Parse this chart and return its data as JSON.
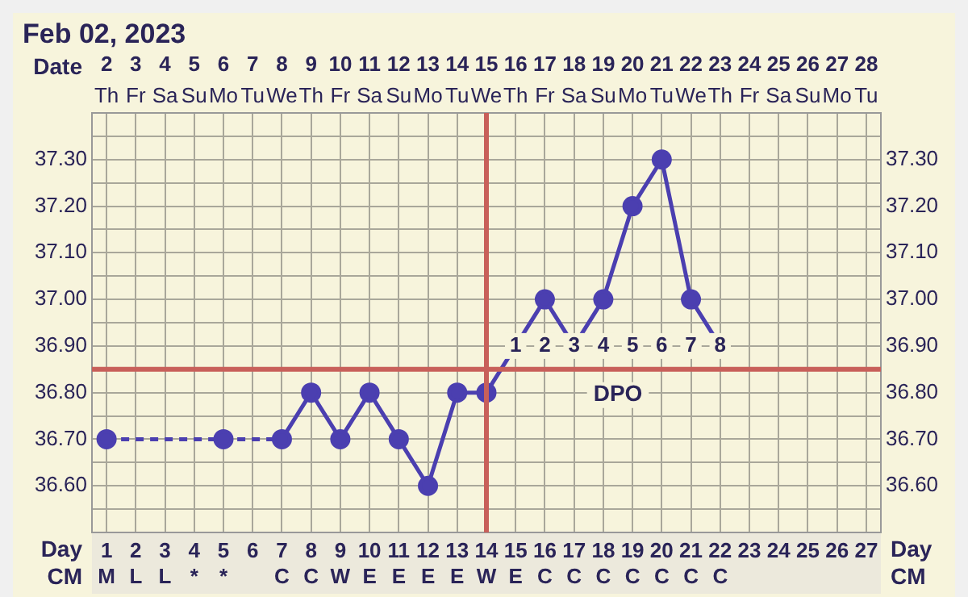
{
  "chart_data": {
    "type": "line",
    "title": "Feb 02, 2023",
    "x": [
      1,
      2,
      3,
      4,
      5,
      6,
      7,
      8,
      9,
      10,
      11,
      12,
      13,
      14,
      15,
      16,
      17,
      18,
      19,
      20,
      21,
      22
    ],
    "series": [
      {
        "color": "#4b3fb0",
        "values": [
          36.7,
          null,
          null,
          null,
          36.7,
          null,
          36.7,
          36.8,
          36.7,
          36.8,
          36.7,
          36.6,
          36.8,
          36.8,
          36.9,
          37.0,
          36.9,
          37.0,
          37.2,
          37.3,
          37.0,
          36.9
        ]
      }
    ],
    "xlim": [
      0.5,
      27.5
    ],
    "xticks": [
      1,
      2,
      3,
      4,
      5,
      6,
      7,
      8,
      9,
      10,
      11,
      12,
      13,
      14,
      15,
      16,
      17,
      18,
      19,
      20,
      21,
      22,
      23,
      24,
      25,
      26,
      27
    ],
    "xlabel": "Day",
    "x2lim": [
      1.5,
      28.5
    ],
    "x2ticks": [
      2,
      3,
      4,
      5,
      6,
      7,
      8,
      9,
      10,
      11,
      12,
      13,
      14,
      15,
      16,
      17,
      18,
      19,
      20,
      21,
      22,
      23,
      24,
      25,
      26,
      27,
      28
    ],
    "x2label": "Date",
    "ylim": [
      36.5,
      37.4
    ],
    "yticks": [
      {
        "value": 36.55,
        "label": null
      },
      {
        "value": 36.6,
        "label": "36.60"
      },
      {
        "value": 36.65,
        "label": null
      },
      {
        "value": 36.7,
        "label": "36.70"
      },
      {
        "value": 36.75,
        "label": null
      },
      {
        "value": 36.8,
        "label": "36.80"
      },
      {
        "value": 36.9,
        "label": "36.90"
      },
      {
        "value": 36.95,
        "label": null
      },
      {
        "value": 37.0,
        "label": "37.00"
      },
      {
        "value": 37.05,
        "label": null
      },
      {
        "value": 37.1,
        "label": "37.10"
      },
      {
        "value": 37.15,
        "label": null
      },
      {
        "value": 37.2,
        "label": "37.20"
      },
      {
        "value": 37.25,
        "label": null
      },
      {
        "value": 37.3,
        "label": "37.30"
      },
      {
        "value": 37.35,
        "label": null
      }
    ],
    "y2lim": [
      36.5,
      37.4
    ],
    "y2ticks": [
      {
        "value": 36.55,
        "label": null
      },
      {
        "value": 36.6,
        "label": "36.60"
      },
      {
        "value": 36.65,
        "label": null
      },
      {
        "value": 36.7,
        "label": "36.70"
      },
      {
        "value": 36.75,
        "label": null
      },
      {
        "value": 36.8,
        "label": "36.80"
      },
      {
        "value": 36.9,
        "label": "36.90"
      },
      {
        "value": 36.95,
        "label": null
      },
      {
        "value": 37.0,
        "label": "37.00"
      },
      {
        "value": 37.05,
        "label": null
      },
      {
        "value": 37.1,
        "label": "37.10"
      },
      {
        "value": 37.15,
        "label": null
      },
      {
        "value": 37.2,
        "label": "37.20"
      },
      {
        "value": 37.25,
        "label": null
      },
      {
        "value": 37.3,
        "label": "37.30"
      },
      {
        "value": 37.35,
        "label": null
      }
    ],
    "ref_lines": [
      {
        "axis": "y",
        "value": 36.85,
        "color": "#c8605a"
      },
      {
        "axis": "x",
        "value": 14,
        "color": "#c8605a"
      }
    ],
    "annotations": [
      "Th",
      "Fr",
      "Sa",
      "Su",
      "Mo",
      "Tu",
      "We",
      "Th",
      "Fr",
      "Sa",
      "Su",
      "Mo",
      "Tu",
      "We",
      "Th",
      "Fr",
      "Sa",
      "Su",
      "Mo",
      "Tu",
      "We",
      "Th",
      "Fr",
      "Sa",
      "Su",
      "Mo",
      "Tu",
      "CM",
      "M",
      "L",
      "L",
      "*",
      "*",
      "C",
      "C",
      "W",
      "E",
      "E",
      "E",
      "E",
      "W",
      "E",
      "C",
      "C",
      "C",
      "C",
      "C",
      "C",
      "C",
      "DPO",
      {
        "text": "1",
        "x": 15,
        "y": 36.9
      },
      {
        "text": "2",
        "x": 16,
        "y": 36.9
      },
      {
        "text": "3",
        "x": 17,
        "y": 36.9
      },
      {
        "text": "4",
        "x": 18,
        "y": 36.9
      },
      {
        "text": "5",
        "x": 19,
        "y": 36.9
      },
      {
        "text": "6",
        "x": 20,
        "y": 36.9
      },
      {
        "text": "7",
        "x": 21,
        "y": 36.9
      },
      {
        "text": "8",
        "x": 22,
        "y": 36.9
      }
    ],
    "grid": true,
    "legend": false,
    "marker": "circle",
    "line_style": "solid"
  }
}
